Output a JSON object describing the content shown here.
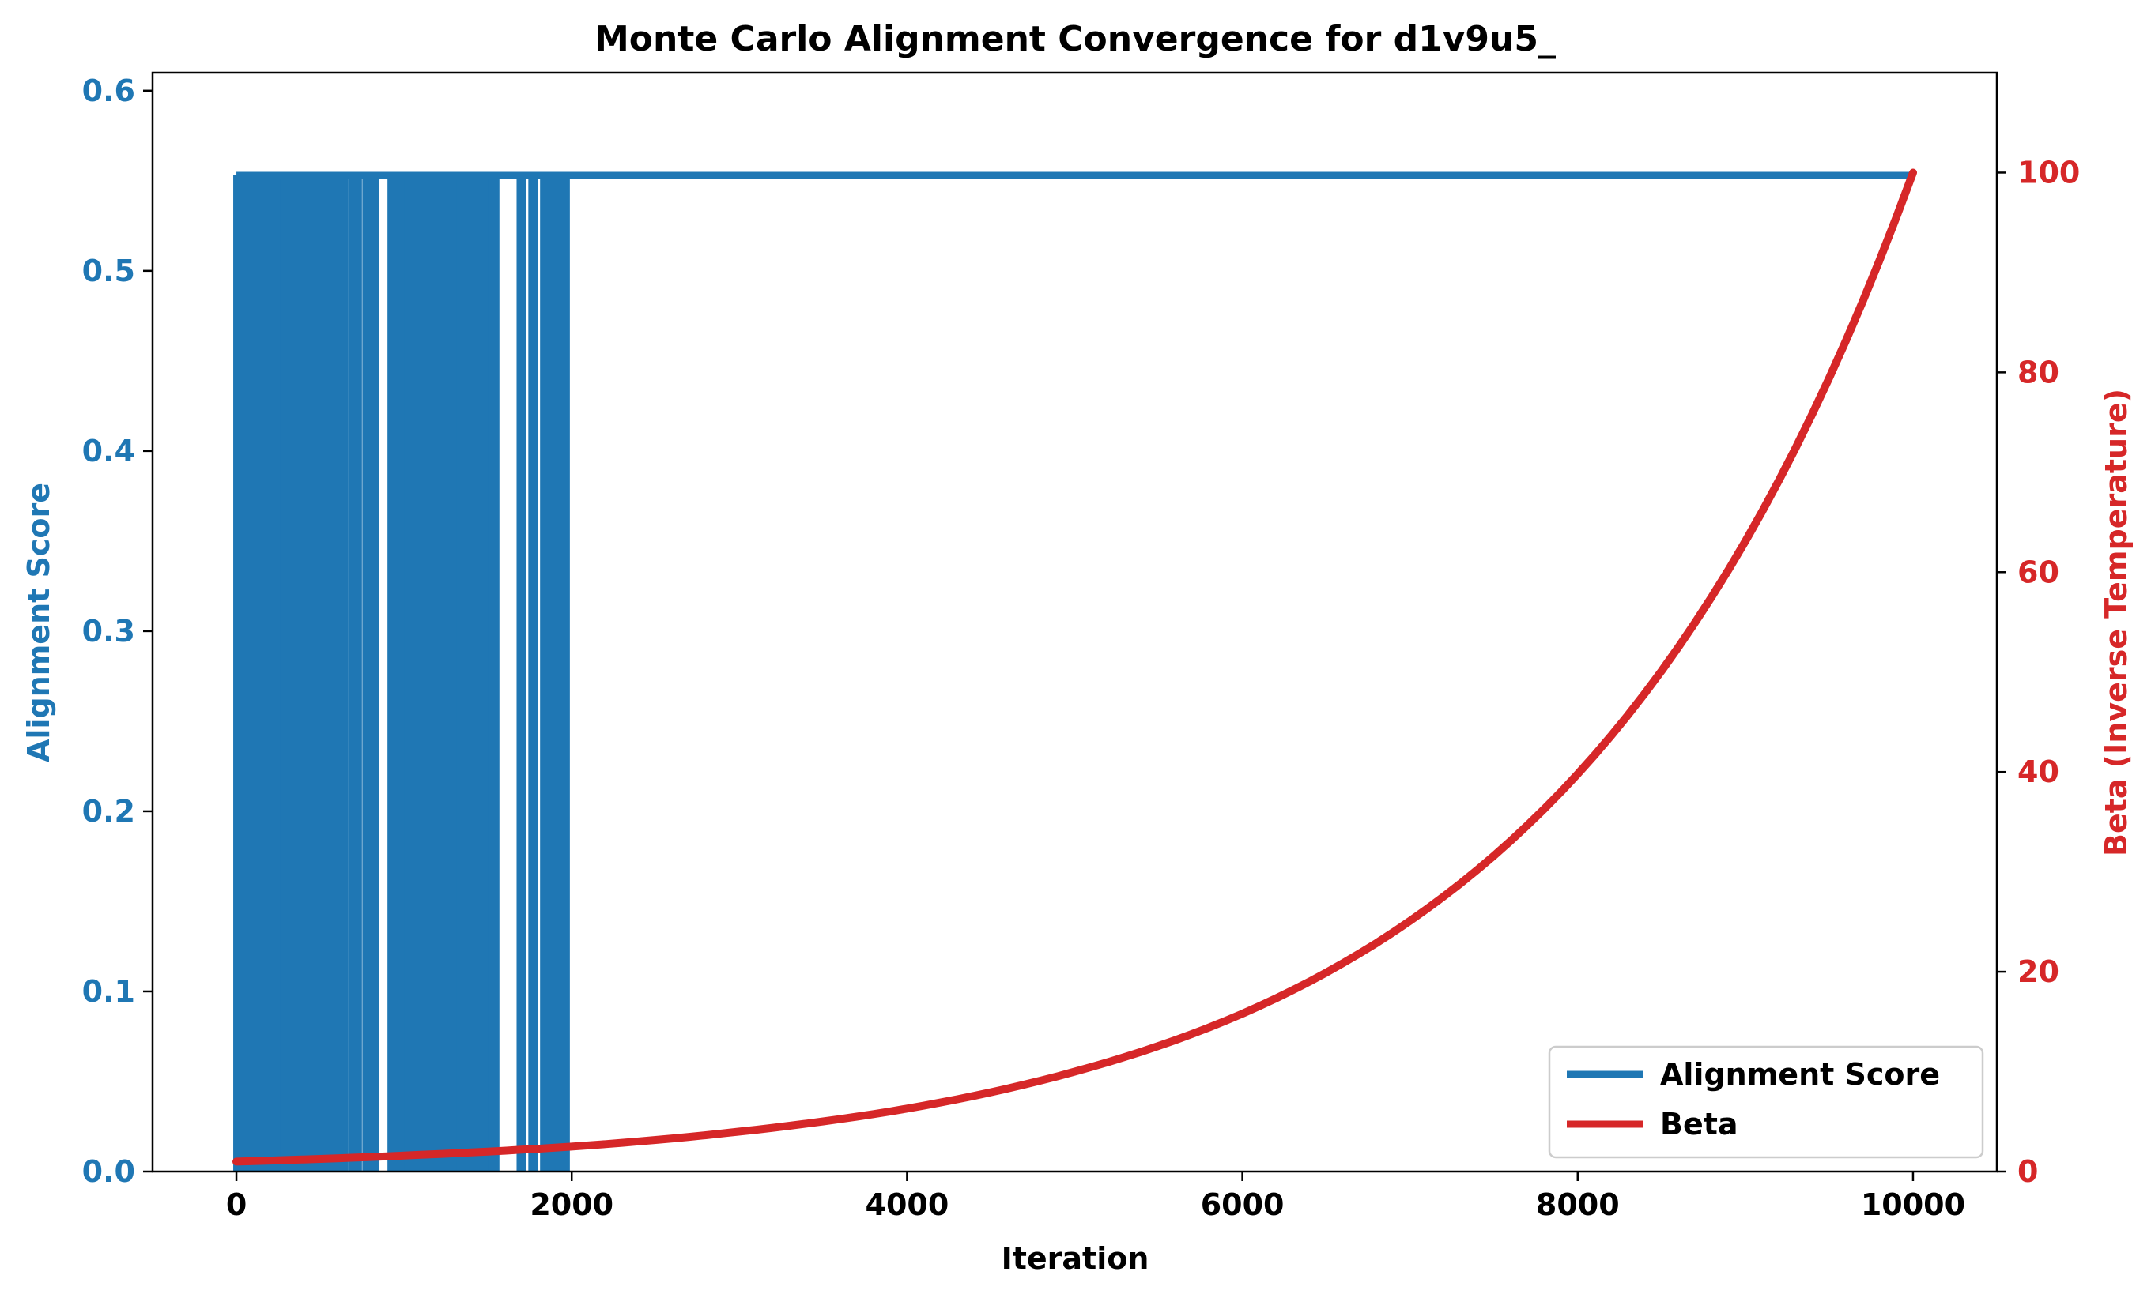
{
  "chart_data": {
    "type": "line",
    "title": "Monte Carlo Alignment Convergence for d1v9u5_",
    "xlabel": "Iteration",
    "ylabel_left": "Alignment Score",
    "ylabel_right": "Beta (Inverse Temperature)",
    "xlim": [
      -500,
      10500
    ],
    "ylim_left": [
      0,
      0.61
    ],
    "ylim_right": [
      0,
      110
    ],
    "xticks": [
      0,
      2000,
      4000,
      6000,
      8000,
      10000
    ],
    "xtick_labels": [
      "0",
      "2000",
      "4000",
      "6000",
      "8000",
      "10000"
    ],
    "yticks_left": [
      0.0,
      0.1,
      0.2,
      0.3,
      0.4,
      0.5,
      0.6
    ],
    "ytick_labels_left": [
      "0.0",
      "0.1",
      "0.2",
      "0.3",
      "0.4",
      "0.5",
      "0.6"
    ],
    "yticks_right": [
      0,
      20,
      40,
      60,
      80,
      100
    ],
    "ytick_labels_right": [
      "0",
      "20",
      "40",
      "60",
      "80",
      "100"
    ],
    "grid": false,
    "legend_position": "bottom-right",
    "colors": {
      "score": "#1f77b4",
      "beta": "#d62728"
    },
    "series": [
      {
        "name": "Alignment Score",
        "axis": "left",
        "high_value": 0.553,
        "low_value": 0.0,
        "final_value": 0.553,
        "low_dip_iterations": [
          [
            0,
            250
          ],
          [
            280,
            650
          ],
          [
            690,
            730
          ],
          [
            770,
            830
          ],
          [
            920,
            1000
          ],
          [
            1020,
            1100
          ],
          [
            1120,
            1220
          ],
          [
            1250,
            1310
          ],
          [
            1330,
            1500
          ],
          [
            1520,
            1550
          ],
          [
            1690,
            1710
          ],
          [
            1760,
            1780
          ],
          [
            1830,
            1970
          ]
        ],
        "x_end": 10000
      },
      {
        "name": "Beta",
        "axis": "right",
        "x": [
          0,
          1000,
          2000,
          3000,
          4000,
          5000,
          6000,
          7000,
          8000,
          9000,
          10000
        ],
        "values": [
          1.0,
          1.6,
          2.5,
          4.0,
          6.3,
          10.0,
          15.8,
          25.1,
          39.8,
          63.1,
          100.0
        ]
      }
    ]
  }
}
